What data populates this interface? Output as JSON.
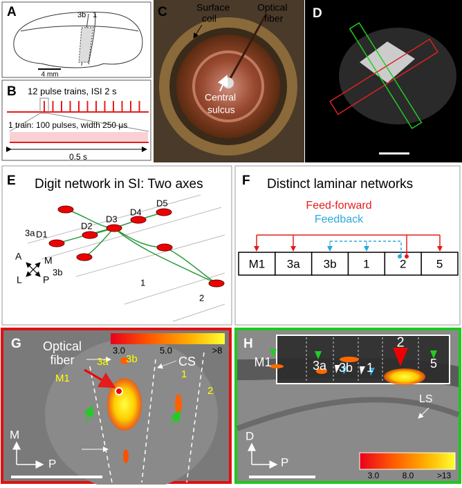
{
  "a": {
    "label": "A",
    "areas": [
      "3b",
      "1"
    ],
    "scale": "4 mm"
  },
  "b": {
    "label": "B",
    "trains": "12 pulse trains, ISI 2 s",
    "train": "1 train: 100 pulses, width 250 μs",
    "duration": "0.5 s"
  },
  "c": {
    "label": "C",
    "coil": [
      "Surface",
      "coil"
    ],
    "fiber": [
      "Optical",
      "fiber"
    ],
    "sulcus": [
      "Central",
      "sulcus"
    ]
  },
  "d": {
    "label": "D"
  },
  "e": {
    "label": "E",
    "title": "Digit network in SI: Two axes",
    "areas": [
      "3a",
      "3b",
      "1",
      "2"
    ],
    "digits": [
      "D1",
      "D2",
      "D3",
      "D4",
      "D5"
    ],
    "axes": [
      "A",
      "M",
      "L",
      "P"
    ]
  },
  "f": {
    "label": "F",
    "title": "Distinct laminar networks",
    "feedforward": "Feed-forward",
    "feedback": "Feedback",
    "areas": [
      "M1",
      "3a",
      "3b",
      "1",
      "2",
      "5"
    ]
  },
  "g": {
    "label": "G",
    "fiber": [
      "Optical",
      "fiber"
    ],
    "colorbar": [
      "3.0",
      "5.0",
      ">8"
    ],
    "cs": "CS",
    "areas": [
      "M1",
      "3a",
      "3b",
      "1",
      "2"
    ],
    "axes": [
      "M",
      "P"
    ]
  },
  "h": {
    "label": "H",
    "areas": [
      "M1",
      "3a",
      "3b",
      "1",
      "2",
      "5"
    ],
    "ls": "LS",
    "axes": [
      "D",
      "P"
    ],
    "colorbar": [
      "3.0",
      "8.0",
      ">13"
    ]
  }
}
